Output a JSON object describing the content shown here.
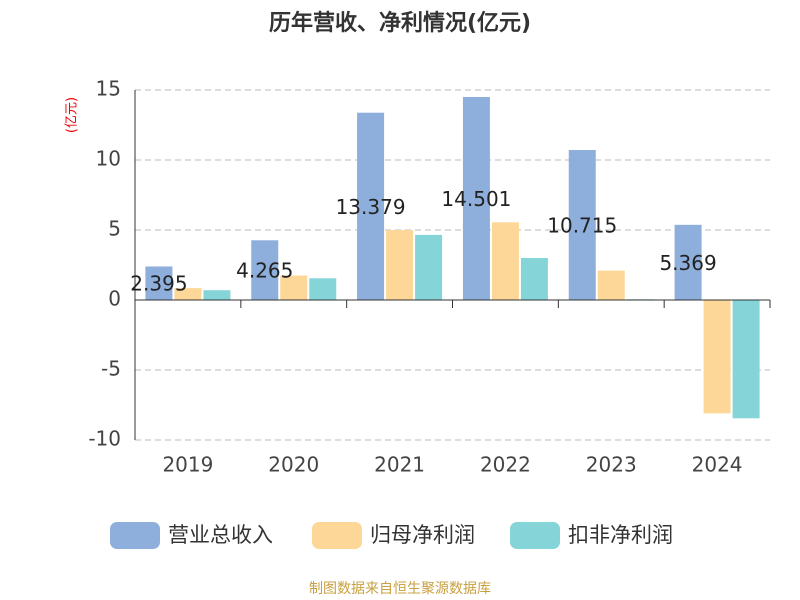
{
  "chart_data": {
    "type": "bar",
    "title": "历年营收、净利情况(亿元)",
    "y_axis_label": "(亿元)",
    "source": "制图数据来自恒生聚源数据库",
    "categories": [
      "2019",
      "2020",
      "2021",
      "2022",
      "2023",
      "2024"
    ],
    "series": [
      {
        "name": "营业总收入",
        "color": "#8eaedb",
        "values": [
          2.395,
          4.265,
          13.379,
          14.501,
          10.715,
          5.369
        ],
        "show_labels": true
      },
      {
        "name": "归母净利润",
        "color": "#fdd797",
        "values": [
          0.85,
          1.75,
          5.0,
          5.55,
          2.1,
          -8.1
        ],
        "show_labels": false
      },
      {
        "name": "扣非净利润",
        "color": "#85d4d8",
        "values": [
          0.7,
          1.55,
          4.65,
          3.0,
          0.05,
          -8.45
        ],
        "show_labels": false
      }
    ],
    "ylim": [
      -10,
      15
    ],
    "yticks": [
      -10,
      -5,
      0,
      5,
      10,
      15
    ],
    "grid": true
  }
}
